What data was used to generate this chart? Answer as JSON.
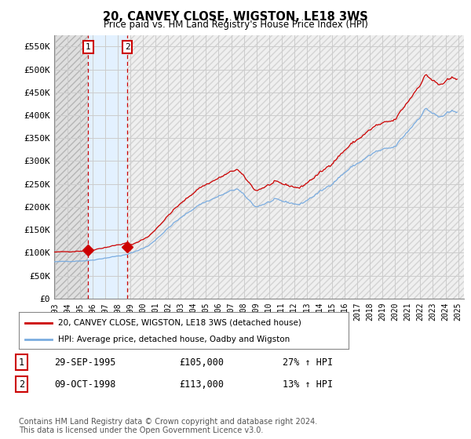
{
  "title": "20, CANVEY CLOSE, WIGSTON, LE18 3WS",
  "subtitle": "Price paid vs. HM Land Registry's House Price Index (HPI)",
  "ylabel_ticks": [
    "£0",
    "£50K",
    "£100K",
    "£150K",
    "£200K",
    "£250K",
    "£300K",
    "£350K",
    "£400K",
    "£450K",
    "£500K",
    "£550K"
  ],
  "ytick_values": [
    0,
    50000,
    100000,
    150000,
    200000,
    250000,
    300000,
    350000,
    400000,
    450000,
    500000,
    550000
  ],
  "ylim": [
    0,
    575000
  ],
  "xlim_left": 1993.0,
  "xlim_right": 2025.5,
  "sale1_year": 1995,
  "sale1_month": 9,
  "sale1_price": 105000,
  "sale2_year": 1998,
  "sale2_month": 10,
  "sale2_price": 113000,
  "legend_line1": "20, CANVEY CLOSE, WIGSTON, LE18 3WS (detached house)",
  "legend_line2": "HPI: Average price, detached house, Oadby and Wigston",
  "table_row1_label": "1",
  "table_row1_date": "29-SEP-1995",
  "table_row1_price": "£105,000",
  "table_row1_hpi": "27% ↑ HPI",
  "table_row2_label": "2",
  "table_row2_date": "09-OCT-1998",
  "table_row2_price": "£113,000",
  "table_row2_hpi": "13% ↑ HPI",
  "footer": "Contains HM Land Registry data © Crown copyright and database right 2024.\nThis data is licensed under the Open Government Licence v3.0.",
  "house_color": "#cc0000",
  "hpi_color": "#7aace0",
  "hatch_color": "#d8d8d8",
  "blue_shade_color": "#ddeeff",
  "grid_color": "#cccccc",
  "vline_color": "#cc0000",
  "sale_marker_color": "#cc0000"
}
